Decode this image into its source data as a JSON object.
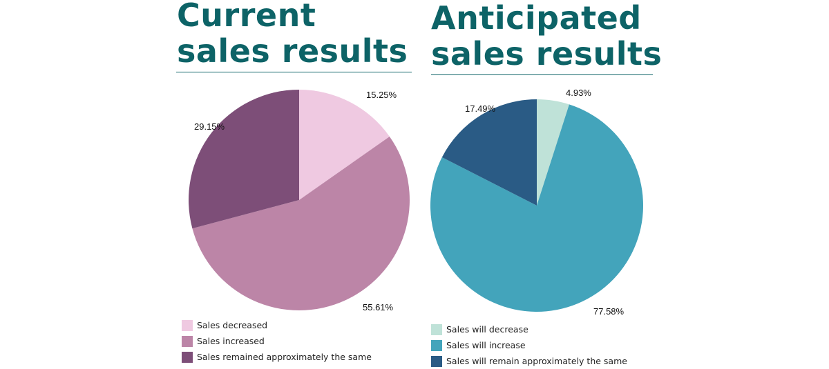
{
  "charts": [
    {
      "title_lines": [
        "Current",
        "sales results"
      ],
      "legend": [
        {
          "label": "Sales decreased",
          "color": "#efc9e1"
        },
        {
          "label": "Sales increased",
          "color": "#bc85a7"
        },
        {
          "label": "Sales remained approximately the same",
          "color": "#7d4e78"
        }
      ]
    },
    {
      "title_lines": [
        "Anticipated",
        "sales results"
      ],
      "legend": [
        {
          "label": "Sales will decrease",
          "color": "#bfe2d8"
        },
        {
          "label": "Sales will increase",
          "color": "#43a4bb"
        },
        {
          "label": "Sales will remain approximately the same",
          "color": "#2a5b85"
        }
      ]
    }
  ],
  "chart_data": [
    {
      "type": "pie",
      "title": "Current sales results",
      "categories": [
        "Sales decreased",
        "Sales increased",
        "Sales remained approximately the same"
      ],
      "values": [
        15.25,
        55.61,
        29.15
      ],
      "labels": [
        "15.25%",
        "55.61%",
        "29.15%"
      ],
      "colors": [
        "#efc9e1",
        "#bc85a7",
        "#7d4e78"
      ],
      "legend_position": "bottom"
    },
    {
      "type": "pie",
      "title": "Anticipated sales results",
      "categories": [
        "Sales will decrease",
        "Sales will increase",
        "Sales will remain approximately the same"
      ],
      "values": [
        4.93,
        77.58,
        17.49
      ],
      "labels": [
        "4.93%",
        "77.58%",
        "17.49%"
      ],
      "colors": [
        "#bfe2d8",
        "#43a4bb",
        "#2a5b85"
      ],
      "legend_position": "bottom"
    }
  ]
}
